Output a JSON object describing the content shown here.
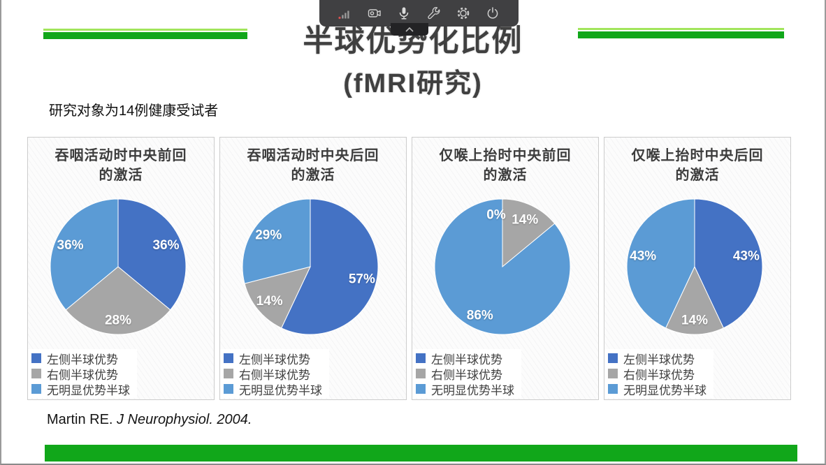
{
  "toolbar": {
    "icons": [
      {
        "name": "signal-strength-icon"
      },
      {
        "name": "camera-icon"
      },
      {
        "name": "microphone-icon"
      },
      {
        "name": "wrench-icon"
      },
      {
        "name": "settings-gear-icon"
      },
      {
        "name": "power-icon"
      },
      {
        "name": "collapse-chevron-icon"
      }
    ]
  },
  "title": {
    "line1": "半球优势化比例",
    "line2": "(fMRI研究)"
  },
  "subtitle": "研究对象为14例健康受试者",
  "citation": {
    "prefix": "Martin RE. ",
    "italic": "J Neurophysiol. 2004."
  },
  "colors": {
    "left_hemisphere": "#4472C4",
    "right_hemisphere": "#A6A6A6",
    "no_dominance": "#5B9BD5",
    "accent_green": "#11A71A",
    "accent_green_light": "#A2E55C",
    "toolbar_bg": "#3A3A3C"
  },
  "chart_data": [
    {
      "type": "pie",
      "title": "吞咽活动时中央前回的激活",
      "title_lines": [
        "吞咽活动时中央前回",
        "的激活"
      ],
      "categories": [
        "左侧半球优势",
        "右侧半球优势",
        "无明显优势半球"
      ],
      "values": [
        36,
        28,
        36
      ],
      "labels": [
        "36%",
        "28%",
        "36%"
      ],
      "colors": [
        "#4472C4",
        "#A6A6A6",
        "#5B9BD5"
      ],
      "start_angle": 0,
      "direction": "clockwise",
      "legend_position": "bottom-left"
    },
    {
      "type": "pie",
      "title": "吞咽活动时中央后回的激活",
      "title_lines": [
        "吞咽活动时中央后回",
        "的激活"
      ],
      "categories": [
        "左侧半球优势",
        "右侧半球优势",
        "无明显优势半球"
      ],
      "values": [
        57,
        14,
        29
      ],
      "labels": [
        "57%",
        "14%",
        "29%"
      ],
      "colors": [
        "#4472C4",
        "#A6A6A6",
        "#5B9BD5"
      ],
      "start_angle": 0,
      "direction": "clockwise",
      "legend_position": "bottom-left"
    },
    {
      "type": "pie",
      "title": "仅喉上抬时中央前回的激活",
      "title_lines": [
        "仅喉上抬时中央前回",
        "的激活"
      ],
      "categories": [
        "左侧半球优势",
        "右侧半球优势",
        "无明显优势半球"
      ],
      "values": [
        0,
        14,
        86
      ],
      "labels": [
        "0%",
        "14%",
        "86%"
      ],
      "colors": [
        "#4472C4",
        "#A6A6A6",
        "#5B9BD5"
      ],
      "start_angle": 0,
      "direction": "clockwise",
      "legend_position": "bottom-left"
    },
    {
      "type": "pie",
      "title": "仅喉上抬时中央后回的激活",
      "title_lines": [
        "仅喉上抬时中央后回",
        "的激活"
      ],
      "categories": [
        "左侧半球优势",
        "右侧半球优势",
        "无明显优势半球"
      ],
      "values": [
        43,
        14,
        43
      ],
      "labels": [
        "43%",
        "14%",
        "43%"
      ],
      "colors": [
        "#4472C4",
        "#A6A6A6",
        "#5B9BD5"
      ],
      "start_angle": 0,
      "direction": "clockwise",
      "legend_position": "bottom-left"
    }
  ]
}
